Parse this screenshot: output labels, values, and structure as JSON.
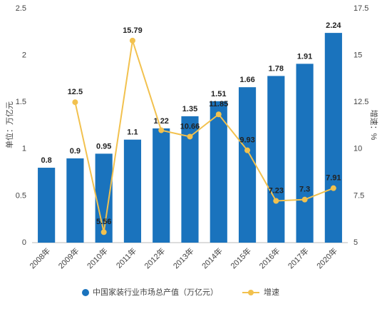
{
  "chart_data": {
    "type": "bar-line",
    "categories": [
      "2008年",
      "2009年",
      "2010年",
      "2011年",
      "2012年",
      "2013年",
      "2014年",
      "2015年",
      "2016年",
      "2017年",
      "2020年"
    ],
    "ylabel": "单位：万亿元",
    "y2label": "增速：%",
    "ylim": [
      0,
      2.5
    ],
    "yticks": [
      0,
      0.5,
      1,
      1.5,
      2,
      2.5
    ],
    "y2lim": [
      5,
      17.5
    ],
    "y2ticks": [
      5,
      7.5,
      10,
      12.5,
      15,
      17.5
    ],
    "series": [
      {
        "name": "中国家装行业市场总产值（万亿元）",
        "color": "#1a73bd",
        "kind": "bar",
        "values": [
          0.8,
          0.9,
          0.95,
          1.1,
          1.22,
          1.35,
          1.51,
          1.66,
          1.78,
          1.91,
          2.24
        ]
      },
      {
        "name": "增速",
        "color": "#f2c14e",
        "kind": "line",
        "axis": "y2",
        "values": [
          null,
          12.5,
          5.56,
          15.79,
          11,
          10.66,
          11.85,
          9.93,
          7.23,
          7.3,
          7.91
        ],
        "value_labels": [
          null,
          "12.5",
          "5.56",
          "15.79",
          null,
          "10.66",
          "11.85",
          "9.93",
          "7.23",
          "7.3",
          "7.91"
        ]
      }
    ]
  }
}
